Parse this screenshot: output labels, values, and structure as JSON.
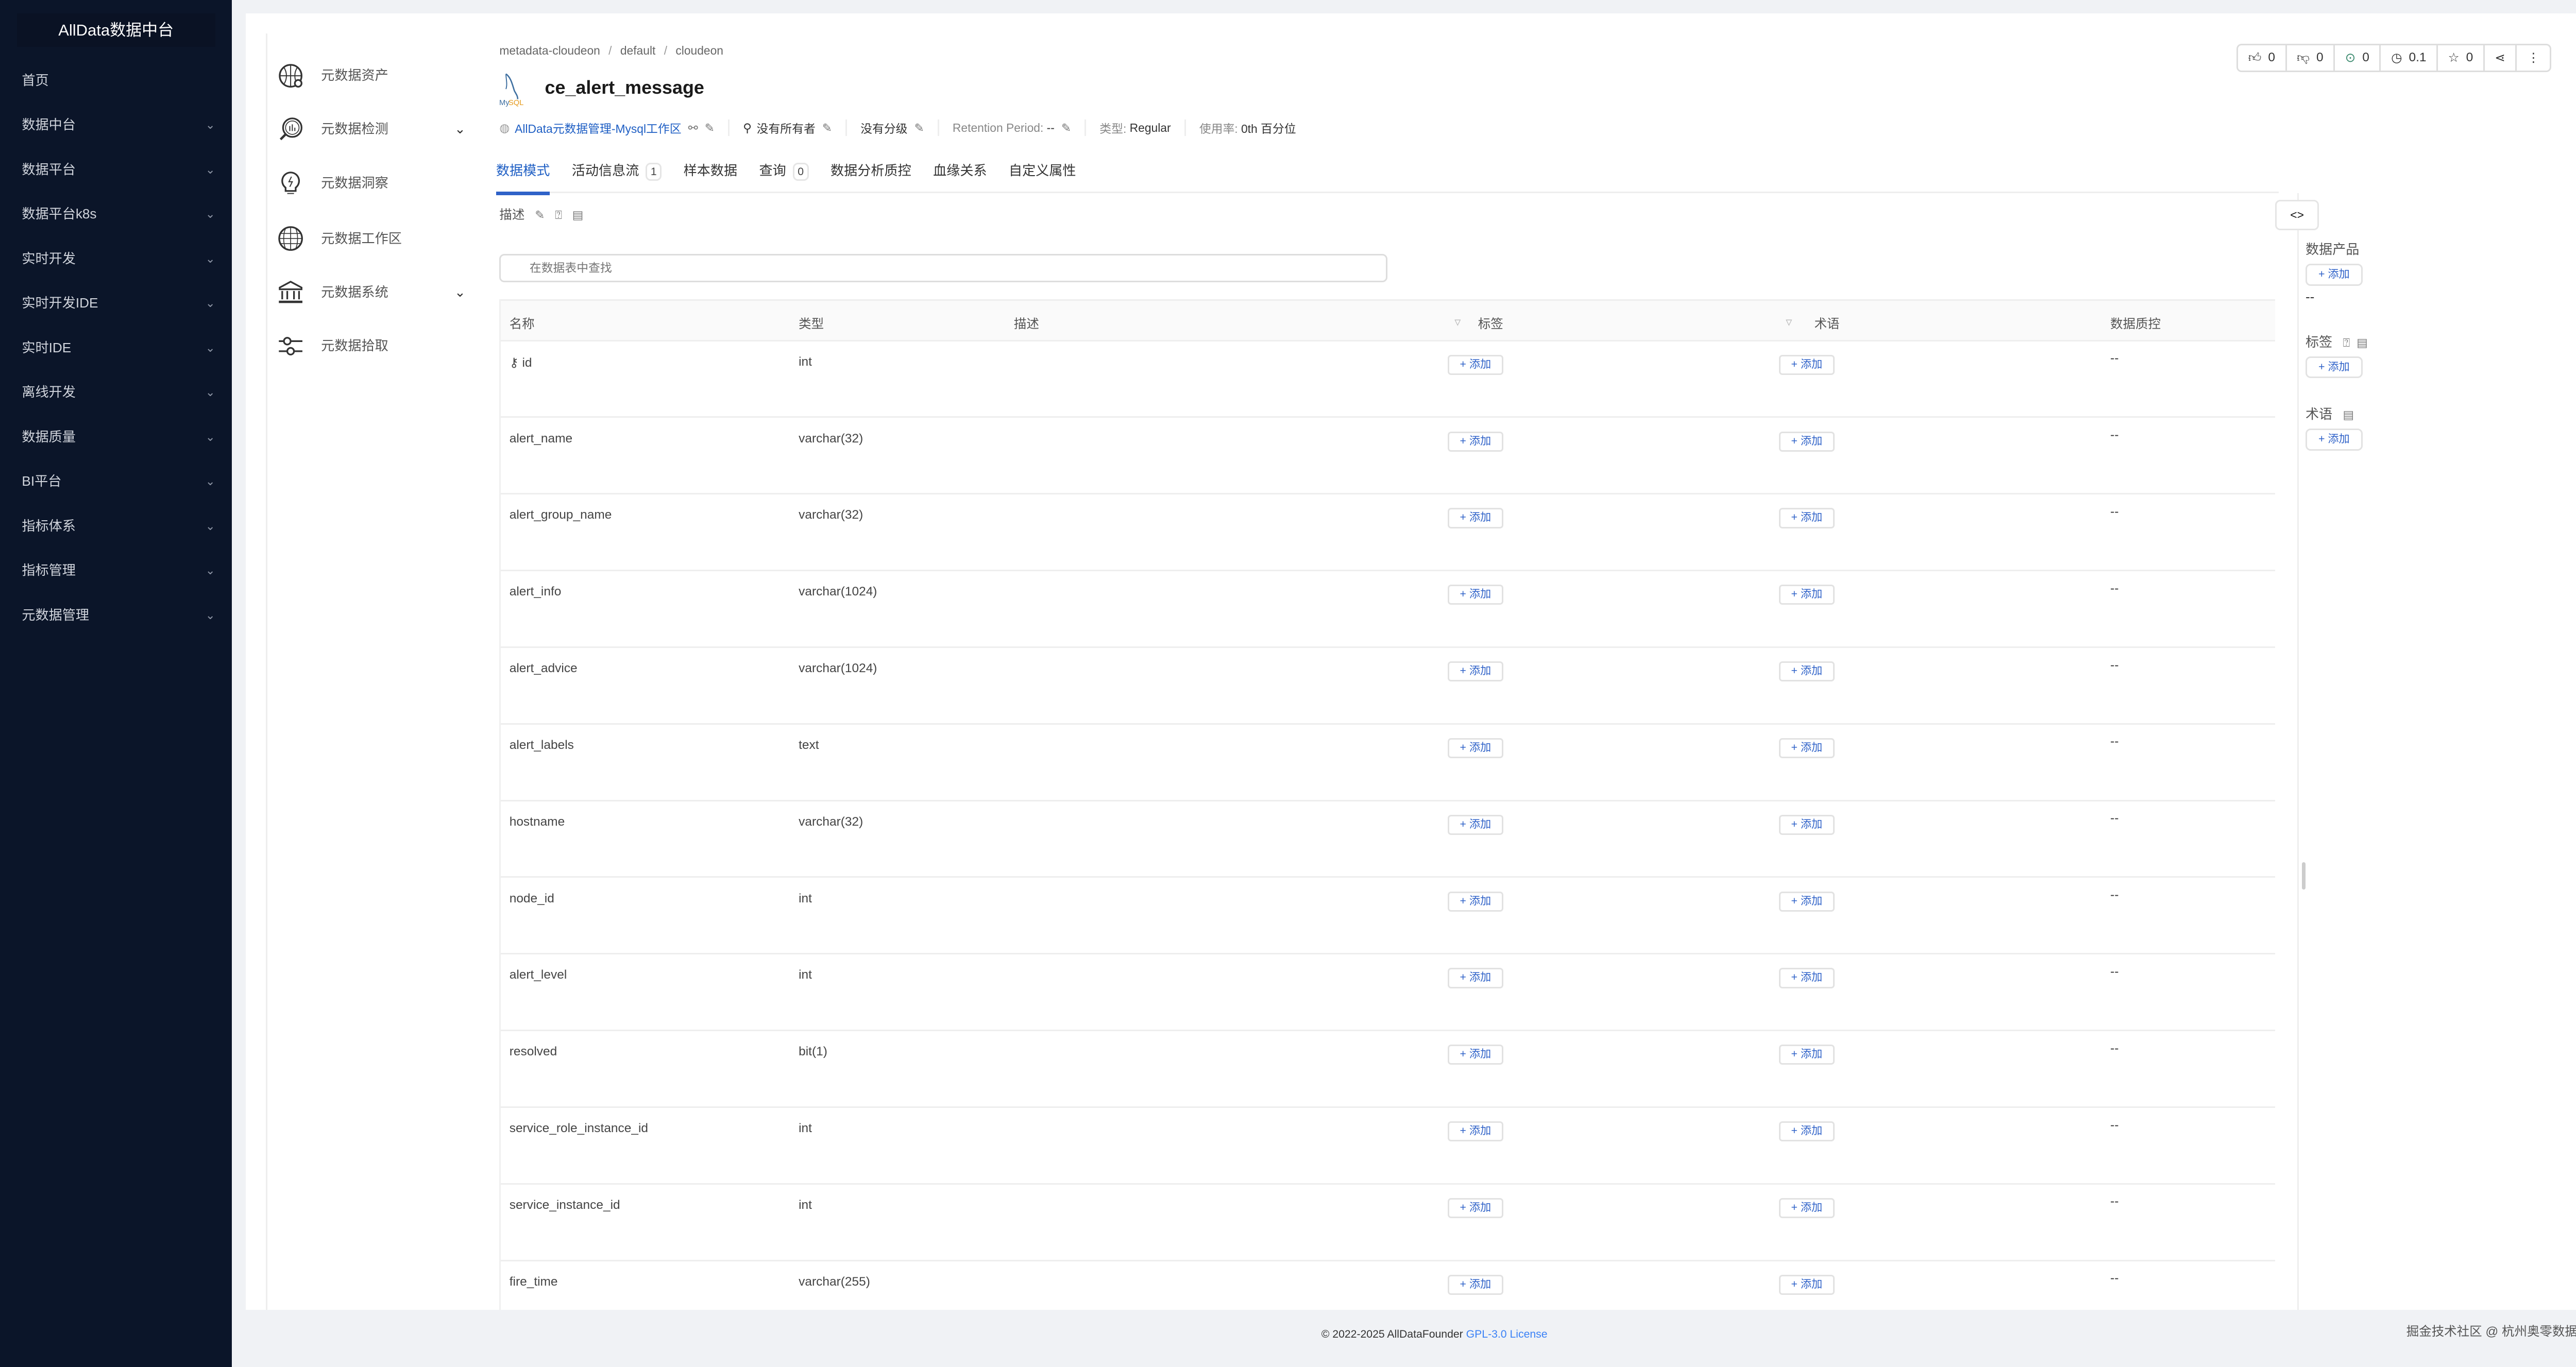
{
  "app": {
    "logo": "AllData数据中台"
  },
  "sidebar": {
    "items": [
      {
        "label": "首页",
        "chev": false
      },
      {
        "label": "数据中台",
        "chev": true
      },
      {
        "label": "数据平台",
        "chev": true
      },
      {
        "label": "数据平台k8s",
        "chev": true
      },
      {
        "label": "实时开发",
        "chev": true
      },
      {
        "label": "实时开发IDE",
        "chev": true
      },
      {
        "label": "实时IDE",
        "chev": true
      },
      {
        "label": "离线开发",
        "chev": true
      },
      {
        "label": "数据质量",
        "chev": true
      },
      {
        "label": "BI平台",
        "chev": true
      },
      {
        "label": "指标体系",
        "chev": true
      },
      {
        "label": "指标管理",
        "chev": true
      },
      {
        "label": "元数据管理",
        "chev": true
      }
    ]
  },
  "subnav": {
    "items": [
      {
        "label": "元数据资产",
        "icon": "globe-search-icon",
        "chev": false
      },
      {
        "label": "元数据检测",
        "icon": "magnifier-chart-icon",
        "chev": true
      },
      {
        "label": "元数据洞察",
        "icon": "lightbulb-icon",
        "chev": false
      },
      {
        "label": "元数据工作区",
        "icon": "globe-icon",
        "chev": false
      },
      {
        "label": "元数据系统",
        "icon": "bank-icon",
        "chev": true
      },
      {
        "label": "元数据拾取",
        "icon": "sliders-icon",
        "chev": false
      }
    ]
  },
  "breadcrumb": [
    "metadata-cloudeon",
    "default",
    "cloudeon"
  ],
  "entity": {
    "title": "ce_alert_message",
    "logo_text": "MySQL",
    "domain": "AllData元数据管理-Mysql工作区",
    "owner": "没有所有者",
    "tier": "没有分级",
    "retention_label": "Retention Period:",
    "retention_value": "--",
    "type_label": "类型:",
    "type_value": "Regular",
    "usage_label": "使用率:",
    "usage_value": "0th 百分位"
  },
  "actions": [
    {
      "icon": "thumbs-up-icon",
      "value": "0"
    },
    {
      "icon": "thumbs-down-icon",
      "value": "0"
    },
    {
      "icon": "follow-icon",
      "value": "0"
    },
    {
      "icon": "history-icon",
      "value": "0.1"
    },
    {
      "icon": "star-icon",
      "value": "0"
    },
    {
      "icon": "share-icon"
    },
    {
      "icon": "more-icon"
    }
  ],
  "colors": {
    "accent": "#2f62c8",
    "sidebar": "#0b1529",
    "follow": "#3b8a6e"
  },
  "tabs": [
    {
      "label": "数据模式",
      "active": true
    },
    {
      "label": "活动信息流",
      "badge": "1"
    },
    {
      "label": "样本数据"
    },
    {
      "label": "查询",
      "badge": "0"
    },
    {
      "label": "数据分析质控"
    },
    {
      "label": "血缘关系"
    },
    {
      "label": "自定义属性"
    }
  ],
  "description_label": "描述",
  "search": {
    "placeholder": "在数据表中查找"
  },
  "table": {
    "headers": {
      "name": "名称",
      "type": "类型",
      "desc": "描述",
      "tags": "标签",
      "terms": "术语",
      "quality": "数据质控"
    },
    "add_label": "添加",
    "empty": "--",
    "rows": [
      {
        "name": "id",
        "type": "int",
        "key": true
      },
      {
        "name": "alert_name",
        "type": "varchar(32)"
      },
      {
        "name": "alert_group_name",
        "type": "varchar(32)"
      },
      {
        "name": "alert_info",
        "type": "varchar(1024)"
      },
      {
        "name": "alert_advice",
        "type": "varchar(1024)"
      },
      {
        "name": "alert_labels",
        "type": "text"
      },
      {
        "name": "hostname",
        "type": "varchar(32)"
      },
      {
        "name": "node_id",
        "type": "int"
      },
      {
        "name": "alert_level",
        "type": "int"
      },
      {
        "name": "resolved",
        "type": "bit(1)"
      },
      {
        "name": "service_role_instance_id",
        "type": "int"
      },
      {
        "name": "service_instance_id",
        "type": "int"
      },
      {
        "name": "fire_time",
        "type": "varchar(255)"
      }
    ]
  },
  "right_panel": {
    "toggle": "<>",
    "data_product": "数据产品",
    "data_product_value": "--",
    "tags": "标签",
    "terms": "术语",
    "add_label": "添加"
  },
  "footer": {
    "copyright": "© 2022-2025 AllDataFounder",
    "license": "GPL-3.0 License"
  },
  "watermark": "掘金技术社区 @ 杭州奥零数据科技"
}
